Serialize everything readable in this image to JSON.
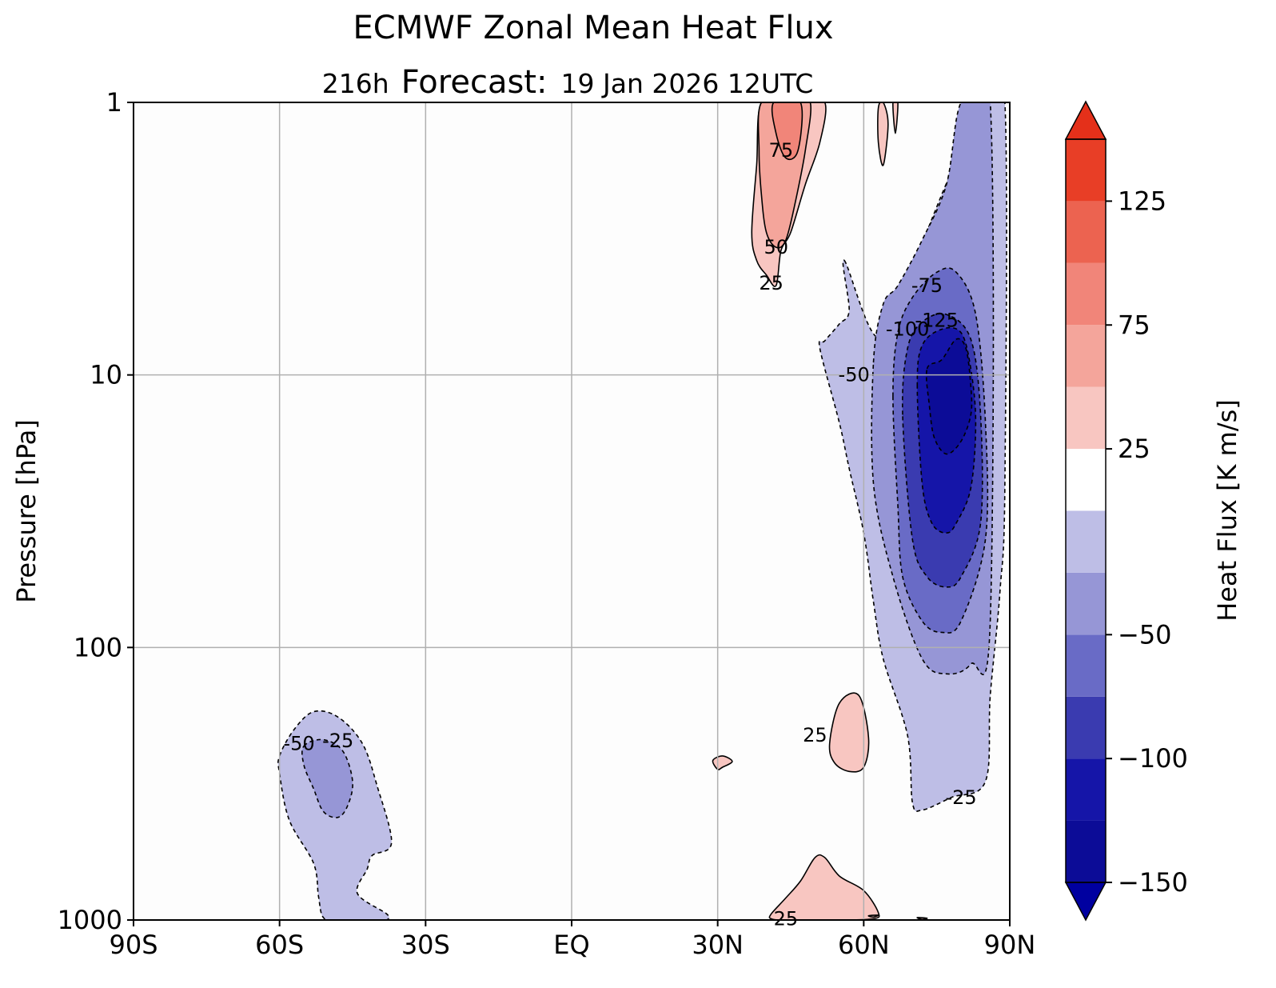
{
  "chart_data": {
    "type": "contourf",
    "title": "ECMWF Zonal Mean Heat Flux",
    "subtitle": {
      "lead": "216h",
      "label": "Forecast:",
      "date": "19 Jan 2026  12UTC"
    },
    "xlabel": "",
    "ylabel": "Pressure [hPa]",
    "xlim": [
      -90,
      90
    ],
    "ylim": [
      1000,
      1
    ],
    "yscale": "log",
    "grid": true,
    "x_ticks": [
      {
        "value": -90,
        "label": "90S"
      },
      {
        "value": -60,
        "label": "60S"
      },
      {
        "value": -30,
        "label": "30S"
      },
      {
        "value": 0,
        "label": "EQ"
      },
      {
        "value": 30,
        "label": "30N"
      },
      {
        "value": 60,
        "label": "60N"
      },
      {
        "value": 90,
        "label": "90N"
      }
    ],
    "y_ticks": [
      {
        "value": 1,
        "label": "1"
      },
      {
        "value": 10,
        "label": "10"
      },
      {
        "value": 100,
        "label": "100"
      },
      {
        "value": 1000,
        "label": "1000"
      }
    ],
    "colorbar": {
      "label": "Heat Flux [K  m/s]",
      "extend": "both",
      "range": [
        -150,
        150
      ],
      "levels": [
        -150,
        -125,
        -100,
        -75,
        -50,
        -25,
        0,
        25,
        50,
        75,
        100,
        125,
        150
      ],
      "tick_values": [
        -150,
        -100,
        -50,
        25,
        75,
        125
      ],
      "tick_labels": [
        "−150",
        "−100",
        "−50",
        "25",
        "75",
        "125"
      ],
      "colors": [
        "#0c0c97",
        "#1515a8",
        "#3a3bb0",
        "#696bc6",
        "#9696d6",
        "#bebee6",
        "#ffffff",
        "#f8c6c1",
        "#f4a59b",
        "#f18579",
        "#ec6350",
        "#e83e26"
      ],
      "under_color": "#0000a0",
      "over_color": "#e4301a"
    },
    "contour_labels": [
      {
        "text": "75",
        "lon": 43,
        "p": 1.5
      },
      {
        "text": "50",
        "lon": 42,
        "p": 3.4
      },
      {
        "text": "25",
        "lon": 41,
        "p": 4.6
      },
      {
        "text": "-75",
        "lon": 73,
        "p": 4.7
      },
      {
        "text": "-100",
        "lon": 69,
        "p": 6.8
      },
      {
        "text": "-125",
        "lon": 75,
        "p": 6.3
      },
      {
        "text": "-50",
        "lon": 58,
        "p": 10
      },
      {
        "text": "-50",
        "lon": -56,
        "p": 225
      },
      {
        "text": "-25",
        "lon": -48,
        "p": 220
      },
      {
        "text": "25",
        "lon": 50,
        "p": 210
      },
      {
        "text": "-25",
        "lon": 80,
        "p": 355
      },
      {
        "text": "25",
        "lon": 44,
        "p": 990
      }
    ],
    "regions": [
      {
        "level": -25,
        "color": "#bebee6",
        "line": "dashed",
        "points": [
          [
            56,
            3.8
          ],
          [
            63,
            7.3
          ],
          [
            70,
            4
          ],
          [
            78,
            1.8
          ],
          [
            85,
            1
          ],
          [
            89,
            1
          ],
          [
            89,
            25
          ],
          [
            88,
            62
          ],
          [
            86,
            150
          ],
          [
            85,
            310
          ],
          [
            78,
            355
          ],
          [
            72,
            395
          ],
          [
            70,
            370
          ],
          [
            69,
            210
          ],
          [
            64,
            110
          ],
          [
            62,
            68
          ],
          [
            60,
            38
          ],
          [
            57,
            22
          ],
          [
            55,
            15
          ],
          [
            51,
            8
          ],
          [
            52,
            7.5
          ],
          [
            55,
            6.5
          ],
          [
            57,
            5.8
          ]
        ]
      },
      {
        "level": -50,
        "color": "#9696d6",
        "line": "dashed",
        "points": [
          [
            62,
            9
          ],
          [
            64,
            5.5
          ],
          [
            67,
            4.7
          ],
          [
            72,
            3.2
          ],
          [
            77,
            2
          ],
          [
            80,
            1
          ],
          [
            86,
            1
          ],
          [
            86,
            80
          ],
          [
            82,
            115
          ],
          [
            77,
            125
          ],
          [
            72,
            110
          ],
          [
            66,
            55
          ],
          [
            62,
            25
          ]
        ]
      },
      {
        "level": -75,
        "color": "#696bc6",
        "line": "dashed",
        "points": [
          [
            66,
            12
          ],
          [
            67,
            7
          ],
          [
            70,
            5.2
          ],
          [
            75,
            4.2
          ],
          [
            79,
            4.2
          ],
          [
            83,
            6
          ],
          [
            85,
            15
          ],
          [
            85,
            40
          ],
          [
            80,
            80
          ],
          [
            76,
            88
          ],
          [
            72,
            80
          ],
          [
            68,
            55
          ],
          [
            67,
            30
          ]
        ]
      },
      {
        "level": -100,
        "color": "#3a3bb0",
        "line": "dashed",
        "points": [
          [
            68,
            14
          ],
          [
            69,
            8
          ],
          [
            72,
            6.4
          ],
          [
            77,
            6
          ],
          [
            82,
            7.4
          ],
          [
            84,
            14
          ],
          [
            84,
            35
          ],
          [
            80,
            55
          ],
          [
            77,
            60
          ],
          [
            73,
            55
          ],
          [
            70,
            40
          ]
        ]
      },
      {
        "level": -125,
        "color": "#1515a8",
        "line": "dashed",
        "points": [
          [
            71,
            11
          ],
          [
            72,
            7.8
          ],
          [
            76,
            6.8
          ],
          [
            80,
            7
          ],
          [
            82,
            9.5
          ],
          [
            83,
            15
          ],
          [
            82,
            26
          ],
          [
            79,
            35
          ],
          [
            77,
            38
          ],
          [
            74,
            35
          ],
          [
            72,
            25
          ]
        ]
      },
      {
        "level": -150,
        "color": "#0c0c97",
        "line": "dashed",
        "points": [
          [
            73,
            9.5
          ],
          [
            76,
            8.8
          ],
          [
            79,
            7.4
          ],
          [
            81,
            8
          ],
          [
            82,
            11
          ],
          [
            82,
            14
          ],
          [
            80,
            17.5
          ],
          [
            77,
            19.5
          ],
          [
            74.5,
            17
          ],
          [
            73.5,
            13
          ]
        ]
      },
      {
        "level": -25,
        "color": "#bebee6",
        "line": "dashed",
        "points": [
          [
            -60,
            250
          ],
          [
            -57,
            200
          ],
          [
            -53,
            172
          ],
          [
            -48,
            180
          ],
          [
            -43,
            225
          ],
          [
            -40,
            320
          ],
          [
            -37,
            520
          ],
          [
            -41,
            580
          ],
          [
            -42,
            650
          ],
          [
            -44,
            800
          ],
          [
            -38,
            950
          ],
          [
            -38,
            1000
          ],
          [
            -40,
            1000
          ],
          [
            -48,
            1000
          ],
          [
            -51,
            980
          ],
          [
            -52,
            820
          ],
          [
            -53,
            620
          ],
          [
            -58,
            430
          ],
          [
            -60,
            290
          ]
        ]
      },
      {
        "level": -50,
        "color": "#9696d6",
        "line": "dashed",
        "points": [
          [
            -55,
            230
          ],
          [
            -51,
            218
          ],
          [
            -47,
            240
          ],
          [
            -45,
            310
          ],
          [
            -46,
            380
          ],
          [
            -48,
            420
          ],
          [
            -51,
            400
          ],
          [
            -53,
            330
          ],
          [
            -55,
            270
          ]
        ]
      },
      {
        "level": 25,
        "color": "#f8c6c1",
        "line": "solid",
        "points": [
          [
            37,
            3
          ],
          [
            38,
            1.7
          ],
          [
            39,
            1
          ],
          [
            45,
            1
          ],
          [
            47,
            1
          ],
          [
            52,
            1
          ],
          [
            51,
            1.4
          ],
          [
            48,
            2
          ],
          [
            45,
            3
          ],
          [
            43,
            3.5
          ],
          [
            42,
            4.7
          ],
          [
            40,
            4.3
          ],
          [
            38,
            3.8
          ]
        ]
      },
      {
        "level": 50,
        "color": "#f4a59b",
        "line": "solid",
        "points": [
          [
            39,
            1
          ],
          [
            45,
            1
          ],
          [
            49,
            1
          ],
          [
            48,
            1.5
          ],
          [
            46,
            2.3
          ],
          [
            44,
            3.2
          ],
          [
            42,
            3.4
          ],
          [
            40,
            3
          ],
          [
            39,
            2.2
          ],
          [
            38.5,
            1.5
          ]
        ]
      },
      {
        "level": 75,
        "color": "#f18579",
        "line": "solid",
        "points": [
          [
            41.5,
            1
          ],
          [
            47,
            1
          ],
          [
            46.5,
            1.5
          ],
          [
            44,
            1.6
          ],
          [
            42,
            1.3
          ]
        ]
      },
      {
        "level": 25,
        "color": "#f8c6c1",
        "line": "solid",
        "points": [
          [
            53,
            225
          ],
          [
            55,
            160
          ],
          [
            59,
            150
          ],
          [
            61,
            215
          ],
          [
            60,
            275
          ],
          [
            57,
            285
          ],
          [
            54,
            265
          ]
        ]
      },
      {
        "level": 25,
        "color": "#f8c6c1",
        "line": "solid",
        "points": [
          [
            29,
            260
          ],
          [
            31,
            250
          ],
          [
            33,
            262
          ],
          [
            31,
            275
          ],
          [
            30,
            280
          ]
        ]
      },
      {
        "level": 25,
        "color": "#f8c6c1",
        "line": "solid",
        "points": [
          [
            41,
            950
          ],
          [
            44,
            830
          ],
          [
            47,
            720
          ],
          [
            50,
            590
          ],
          [
            52,
            590
          ],
          [
            55,
            690
          ],
          [
            60,
            780
          ],
          [
            63,
            940
          ],
          [
            62,
            990
          ],
          [
            55,
            1000
          ],
          [
            44,
            1000
          ],
          [
            41,
            990
          ]
        ]
      },
      {
        "level": 25,
        "color": "#f8c6c1",
        "line": "solid",
        "points": [
          [
            63,
            1.05
          ],
          [
            64,
            1
          ],
          [
            65,
            1.2
          ],
          [
            64,
            1.7
          ],
          [
            63,
            1.4
          ]
        ]
      },
      {
        "level": 25,
        "color": "#f8c6c1",
        "line": "solid",
        "points": [
          [
            66,
            1
          ],
          [
            67,
            1
          ],
          [
            66.5,
            1.3
          ]
        ]
      },
      {
        "level": 25,
        "color": "#f8c6c1",
        "line": "solid",
        "points": [
          [
            71,
            980
          ],
          [
            73,
            985
          ],
          [
            72,
            995
          ]
        ]
      },
      {
        "level": 25,
        "color": "#f8c6c1",
        "line": "solid",
        "points": [
          [
            61,
            965
          ],
          [
            63,
            960
          ],
          [
            62,
            975
          ]
        ]
      }
    ]
  }
}
